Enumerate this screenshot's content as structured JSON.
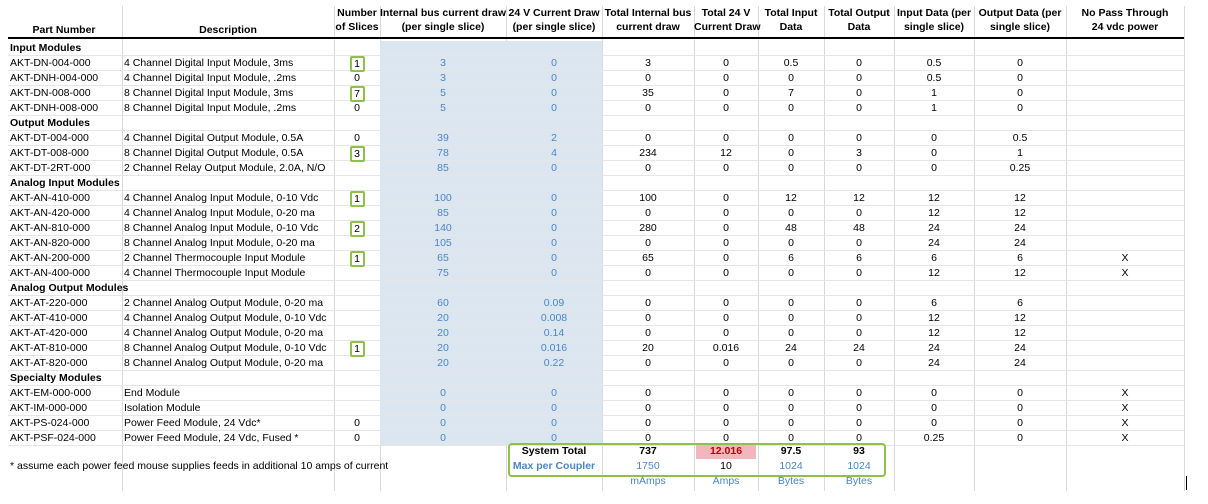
{
  "headers": {
    "part_number": "Part Number",
    "description": "Description",
    "slices": [
      "Number",
      "of Slices"
    ],
    "internal_bus": [
      "Internal bus current draw",
      "(per single slice)"
    ],
    "v24_draw": [
      "24 V Current Draw",
      "(per single slice)"
    ],
    "total_internal": [
      "Total Internal bus",
      "current draw"
    ],
    "total_24v": [
      "Total 24 V",
      "Current Draw"
    ],
    "total_input": [
      "Total Input",
      "Data"
    ],
    "total_output": [
      "Total Output",
      "Data"
    ],
    "input_per": [
      "Input Data (per",
      "single slice)"
    ],
    "output_per": [
      "Output Data (per",
      "single slice)"
    ],
    "no_pass": [
      "No Pass Through",
      "24 vdc power"
    ]
  },
  "rows": [
    {
      "type": "section",
      "label": "Input Modules"
    },
    {
      "part": "AKT-DN-004-000",
      "desc": "4 Channel Digital Input Module, 3ms",
      "slices": "1",
      "boxed": true,
      "bus": "3",
      "v24": "0",
      "tbus": "3",
      "t24": "0",
      "tin": "0.5",
      "tout": "0",
      "inper": "0.5",
      "outper": "0",
      "nopass": ""
    },
    {
      "part": "AKT-DNH-004-000",
      "desc": "4 Channel Digital Input Module, .2ms",
      "slices": "0",
      "boxed": false,
      "bus": "3",
      "v24": "0",
      "tbus": "0",
      "t24": "0",
      "tin": "0",
      "tout": "0",
      "inper": "0.5",
      "outper": "0",
      "nopass": ""
    },
    {
      "part": "AKT-DN-008-000",
      "desc": "8 Channel Digital Input Module, 3ms",
      "slices": "7",
      "boxed": true,
      "bus": "5",
      "v24": "0",
      "tbus": "35",
      "t24": "0",
      "tin": "7",
      "tout": "0",
      "inper": "1",
      "outper": "0",
      "nopass": ""
    },
    {
      "part": "AKT-DNH-008-000",
      "desc": "8 Channel Digital Input Module, .2ms",
      "slices": "0",
      "boxed": false,
      "bus": "5",
      "v24": "0",
      "tbus": "0",
      "t24": "0",
      "tin": "0",
      "tout": "0",
      "inper": "1",
      "outper": "0",
      "nopass": ""
    },
    {
      "type": "section",
      "label": "Output Modules"
    },
    {
      "part": "AKT-DT-004-000",
      "desc": "4 Channel Digital Output Module, 0.5A",
      "slices": "0",
      "boxed": false,
      "bus": "39",
      "v24": "2",
      "tbus": "0",
      "t24": "0",
      "tin": "0",
      "tout": "0",
      "inper": "0",
      "outper": "0.5",
      "nopass": ""
    },
    {
      "part": "AKT-DT-008-000",
      "desc": "8 Channel Digital Output Module, 0.5A",
      "slices": "3",
      "boxed": true,
      "bus": "78",
      "v24": "4",
      "tbus": "234",
      "t24": "12",
      "tin": "0",
      "tout": "3",
      "inper": "0",
      "outper": "1",
      "nopass": ""
    },
    {
      "part": "AKT-DT-2RT-000",
      "desc": "2 Channel Relay Output Module, 2.0A, N/O",
      "slices": "",
      "boxed": false,
      "bus": "85",
      "v24": "0",
      "tbus": "0",
      "t24": "0",
      "tin": "0",
      "tout": "0",
      "inper": "0",
      "outper": "0.25",
      "nopass": ""
    },
    {
      "type": "section",
      "label": "Analog Input Modules"
    },
    {
      "part": "AKT-AN-410-000",
      "desc": "4 Channel Analog Input Module, 0-10 Vdc",
      "slices": "1",
      "boxed": true,
      "bus": "100",
      "v24": "0",
      "tbus": "100",
      "t24": "0",
      "tin": "12",
      "tout": "12",
      "inper": "12",
      "outper": "12",
      "nopass": ""
    },
    {
      "part": "AKT-AN-420-000",
      "desc": "4 Channel Analog Input Module, 0-20 ma",
      "slices": "",
      "boxed": false,
      "bus": "85",
      "v24": "0",
      "tbus": "0",
      "t24": "0",
      "tin": "0",
      "tout": "0",
      "inper": "12",
      "outper": "12",
      "nopass": ""
    },
    {
      "part": "AKT-AN-810-000",
      "desc": "8 Channel Analog Input Module, 0-10 Vdc",
      "slices": "2",
      "boxed": true,
      "bus": "140",
      "v24": "0",
      "tbus": "280",
      "t24": "0",
      "tin": "48",
      "tout": "48",
      "inper": "24",
      "outper": "24",
      "nopass": ""
    },
    {
      "part": "AKT-AN-820-000",
      "desc": "8 Channel Analog Input Module, 0-20 ma",
      "slices": "",
      "boxed": false,
      "bus": "105",
      "v24": "0",
      "tbus": "0",
      "t24": "0",
      "tin": "0",
      "tout": "0",
      "inper": "24",
      "outper": "24",
      "nopass": ""
    },
    {
      "part": "AKT-AN-200-000",
      "desc": "2 Channel Thermocouple Input Module",
      "slices": "1",
      "boxed": true,
      "bus": "65",
      "v24": "0",
      "tbus": "65",
      "t24": "0",
      "tin": "6",
      "tout": "6",
      "inper": "6",
      "outper": "6",
      "nopass": "X"
    },
    {
      "part": "AKT-AN-400-000",
      "desc": "4 Channel Thermocouple Input Module",
      "slices": "",
      "boxed": false,
      "bus": "75",
      "v24": "0",
      "tbus": "0",
      "t24": "0",
      "tin": "0",
      "tout": "0",
      "inper": "12",
      "outper": "12",
      "nopass": "X"
    },
    {
      "type": "section",
      "label": "Analog Output Modules"
    },
    {
      "part": "AKT-AT-220-000",
      "desc": "2 Channel Analog Output Module, 0-20 ma",
      "slices": "",
      "boxed": false,
      "bus": "60",
      "v24": "0.09",
      "tbus": "0",
      "t24": "0",
      "tin": "0",
      "tout": "0",
      "inper": "6",
      "outper": "6",
      "nopass": ""
    },
    {
      "part": "AKT-AT-410-000",
      "desc": "4 Channel Analog Output Module, 0-10 Vdc",
      "slices": "",
      "boxed": false,
      "bus": "20",
      "v24": "0.008",
      "tbus": "0",
      "t24": "0",
      "tin": "0",
      "tout": "0",
      "inper": "12",
      "outper": "12",
      "nopass": ""
    },
    {
      "part": "AKT-AT-420-000",
      "desc": "4 Channel Analog Output Module, 0-20 ma",
      "slices": "",
      "boxed": false,
      "bus": "20",
      "v24": "0.14",
      "tbus": "0",
      "t24": "0",
      "tin": "0",
      "tout": "0",
      "inper": "12",
      "outper": "12",
      "nopass": ""
    },
    {
      "part": "AKT-AT-810-000",
      "desc": "8 Channel Analog Output Module, 0-10 Vdc",
      "slices": "1",
      "boxed": true,
      "bus": "20",
      "v24": "0.016",
      "tbus": "20",
      "t24": "0.016",
      "tin": "24",
      "tout": "24",
      "inper": "24",
      "outper": "24",
      "nopass": ""
    },
    {
      "part": "AKT-AT-820-000",
      "desc": "8 Channel Analog Output Module, 0-20 ma",
      "slices": "",
      "boxed": false,
      "bus": "20",
      "v24": "0.22",
      "tbus": "0",
      "t24": "0",
      "tin": "0",
      "tout": "0",
      "inper": "24",
      "outper": "24",
      "nopass": ""
    },
    {
      "type": "section",
      "label": "Specialty Modules"
    },
    {
      "part": "AKT-EM-000-000",
      "desc": "End Module",
      "slices": "",
      "boxed": false,
      "bus": "0",
      "v24": "0",
      "tbus": "0",
      "t24": "0",
      "tin": "0",
      "tout": "0",
      "inper": "0",
      "outper": "0",
      "nopass": "X"
    },
    {
      "part": "AKT-IM-000-000",
      "desc": "Isolation Module",
      "slices": "",
      "boxed": false,
      "bus": "0",
      "v24": "0",
      "tbus": "0",
      "t24": "0",
      "tin": "0",
      "tout": "0",
      "inper": "0",
      "outper": "0",
      "nopass": "X"
    },
    {
      "part": "AKT-PS-024-000",
      "desc": "Power Feed Module, 24 Vdc*",
      "slices": "0",
      "boxed": false,
      "bus": "0",
      "v24": "0",
      "tbus": "0",
      "t24": "0",
      "tin": "0",
      "tout": "0",
      "inper": "0",
      "outper": "0",
      "nopass": "X"
    },
    {
      "part": "AKT-PSF-024-000",
      "desc": "Power Feed Module, 24 Vdc, Fused *",
      "slices": "0",
      "boxed": false,
      "bus": "0",
      "v24": "0",
      "tbus": "0",
      "t24": "0",
      "tin": "0",
      "tout": "0",
      "inper": "0.25",
      "outper": "0",
      "nopass": "X"
    }
  ],
  "summary": {
    "system_total_label": "System Total",
    "total_internal": "737",
    "total_24v": "12.016",
    "total_input": "97.5",
    "total_output": "93",
    "max_label": "Max per Coupler",
    "max_internal": "1750",
    "max_24v": "10",
    "max_input": "1024",
    "max_output": "1024",
    "unit_internal": "mAmps",
    "unit_24v": "Amps",
    "unit_input": "Bytes",
    "unit_output": "Bytes"
  },
  "footnote": "* assume each power feed mouse supplies feeds in additional 10 amps of current",
  "colors": {
    "shade": "#dce6f1",
    "blue_text": "#4a86c5",
    "highlight_border": "#8fc14a",
    "over_limit": "#f4b6bd"
  }
}
